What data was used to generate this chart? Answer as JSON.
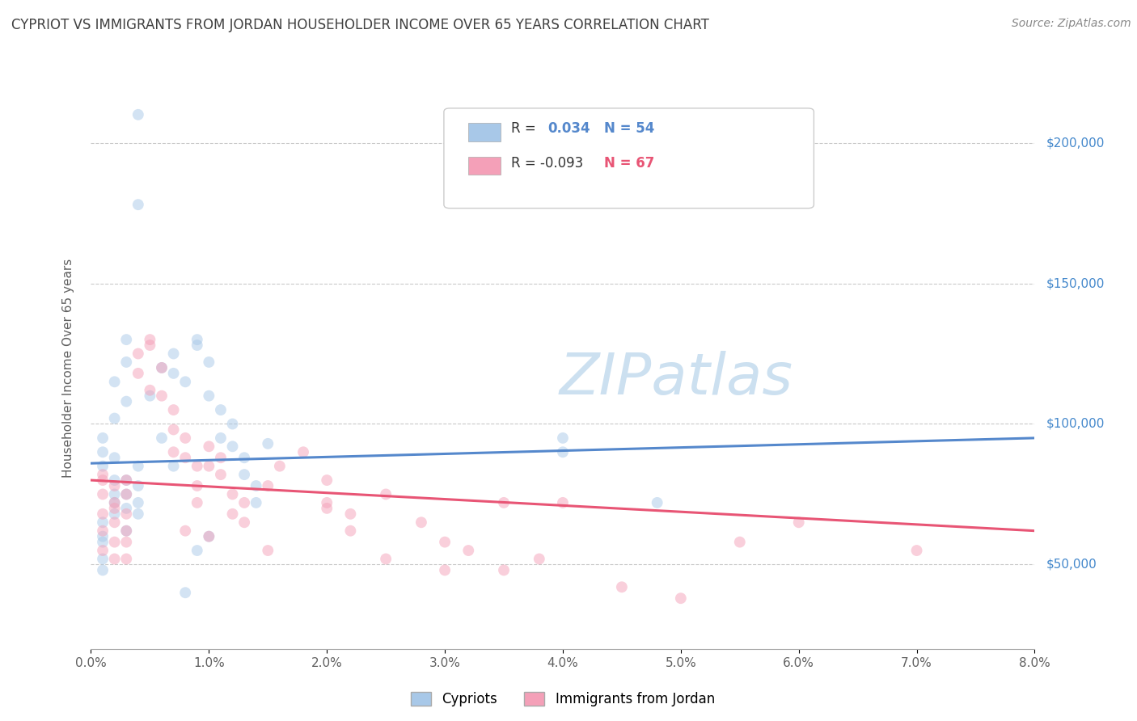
{
  "title": "CYPRIOT VS IMMIGRANTS FROM JORDAN HOUSEHOLDER INCOME OVER 65 YEARS CORRELATION CHART",
  "source": "Source: ZipAtlas.com",
  "ylabel": "Householder Income Over 65 years",
  "legend_blue_r": "R =",
  "legend_blue_r_val": "0.034",
  "legend_blue_n": "N = 54",
  "legend_pink_r": "R = -0.093",
  "legend_pink_n": "N = 67",
  "ytick_labels": [
    "$50,000",
    "$100,000",
    "$150,000",
    "$200,000"
  ],
  "ytick_values": [
    50000,
    100000,
    150000,
    200000
  ],
  "blue_color": "#a8c8e8",
  "pink_color": "#f4a0b8",
  "blue_line_color": "#5588cc",
  "pink_line_color": "#e85575",
  "blue_scatter": [
    [
      0.003,
      75000
    ],
    [
      0.003,
      62000
    ],
    [
      0.003,
      80000
    ],
    [
      0.003,
      70000
    ],
    [
      0.004,
      85000
    ],
    [
      0.004,
      78000
    ],
    [
      0.004,
      72000
    ],
    [
      0.004,
      68000
    ],
    [
      0.006,
      120000
    ],
    [
      0.007,
      125000
    ],
    [
      0.007,
      118000
    ],
    [
      0.008,
      115000
    ],
    [
      0.009,
      130000
    ],
    [
      0.009,
      128000
    ],
    [
      0.01,
      122000
    ],
    [
      0.01,
      110000
    ],
    [
      0.011,
      105000
    ],
    [
      0.011,
      95000
    ],
    [
      0.012,
      100000
    ],
    [
      0.012,
      92000
    ],
    [
      0.013,
      88000
    ],
    [
      0.013,
      82000
    ],
    [
      0.014,
      78000
    ],
    [
      0.014,
      72000
    ],
    [
      0.001,
      90000
    ],
    [
      0.001,
      85000
    ],
    [
      0.001,
      95000
    ],
    [
      0.002,
      88000
    ],
    [
      0.002,
      102000
    ],
    [
      0.002,
      115000
    ],
    [
      0.003,
      108000
    ],
    [
      0.003,
      122000
    ],
    [
      0.003,
      130000
    ],
    [
      0.004,
      178000
    ],
    [
      0.004,
      210000
    ],
    [
      0.005,
      110000
    ],
    [
      0.006,
      95000
    ],
    [
      0.007,
      85000
    ],
    [
      0.008,
      40000
    ],
    [
      0.009,
      55000
    ],
    [
      0.01,
      60000
    ],
    [
      0.015,
      93000
    ],
    [
      0.001,
      58000
    ],
    [
      0.001,
      52000
    ],
    [
      0.001,
      48000
    ],
    [
      0.001,
      65000
    ],
    [
      0.001,
      60000
    ],
    [
      0.002,
      72000
    ],
    [
      0.002,
      80000
    ],
    [
      0.002,
      75000
    ],
    [
      0.002,
      68000
    ],
    [
      0.04,
      95000
    ],
    [
      0.04,
      90000
    ],
    [
      0.048,
      72000
    ]
  ],
  "pink_scatter": [
    [
      0.001,
      75000
    ],
    [
      0.001,
      68000
    ],
    [
      0.001,
      62000
    ],
    [
      0.001,
      55000
    ],
    [
      0.002,
      72000
    ],
    [
      0.002,
      65000
    ],
    [
      0.002,
      58000
    ],
    [
      0.002,
      52000
    ],
    [
      0.003,
      80000
    ],
    [
      0.003,
      75000
    ],
    [
      0.003,
      68000
    ],
    [
      0.003,
      62000
    ],
    [
      0.004,
      125000
    ],
    [
      0.004,
      118000
    ],
    [
      0.005,
      112000
    ],
    [
      0.005,
      128000
    ],
    [
      0.006,
      120000
    ],
    [
      0.006,
      110000
    ],
    [
      0.007,
      105000
    ],
    [
      0.007,
      98000
    ],
    [
      0.007,
      90000
    ],
    [
      0.008,
      95000
    ],
    [
      0.008,
      88000
    ],
    [
      0.009,
      85000
    ],
    [
      0.009,
      78000
    ],
    [
      0.009,
      72000
    ],
    [
      0.01,
      92000
    ],
    [
      0.01,
      85000
    ],
    [
      0.011,
      88000
    ],
    [
      0.011,
      82000
    ],
    [
      0.012,
      75000
    ],
    [
      0.012,
      68000
    ],
    [
      0.013,
      72000
    ],
    [
      0.013,
      65000
    ],
    [
      0.015,
      78000
    ],
    [
      0.016,
      85000
    ],
    [
      0.018,
      90000
    ],
    [
      0.02,
      80000
    ],
    [
      0.02,
      72000
    ],
    [
      0.022,
      68000
    ],
    [
      0.022,
      62000
    ],
    [
      0.025,
      75000
    ],
    [
      0.028,
      65000
    ],
    [
      0.03,
      58000
    ],
    [
      0.032,
      55000
    ],
    [
      0.035,
      48000
    ],
    [
      0.038,
      52000
    ],
    [
      0.001,
      80000
    ],
    [
      0.001,
      82000
    ],
    [
      0.002,
      78000
    ],
    [
      0.002,
      70000
    ],
    [
      0.003,
      58000
    ],
    [
      0.003,
      52000
    ],
    [
      0.005,
      130000
    ],
    [
      0.008,
      62000
    ],
    [
      0.01,
      60000
    ],
    [
      0.015,
      55000
    ],
    [
      0.02,
      70000
    ],
    [
      0.025,
      52000
    ],
    [
      0.03,
      48000
    ],
    [
      0.035,
      72000
    ],
    [
      0.04,
      72000
    ],
    [
      0.045,
      42000
    ],
    [
      0.05,
      38000
    ],
    [
      0.055,
      58000
    ],
    [
      0.06,
      65000
    ],
    [
      0.07,
      55000
    ]
  ],
  "blue_line_x": [
    0.0,
    0.08
  ],
  "blue_line_y": [
    86000,
    95000
  ],
  "pink_line_x": [
    0.0,
    0.08
  ],
  "pink_line_y": [
    80000,
    62000
  ],
  "xlim": [
    0.0,
    0.08
  ],
  "ylim": [
    20000,
    220000
  ],
  "background_color": "#ffffff",
  "plot_bg_color": "#ffffff",
  "grid_color": "#bbbbbb",
  "title_color": "#404040",
  "source_color": "#888888",
  "axis_label_color": "#606060",
  "right_tick_color": "#4488cc",
  "scatter_size": 100,
  "scatter_alpha": 0.5,
  "line_width": 2.2,
  "watermark_text": "ZIPatlas",
  "watermark_color": "#cce0f0",
  "xtick_labels": [
    "0.0%",
    "1.0%",
    "2.0%",
    "3.0%",
    "4.0%",
    "5.0%",
    "6.0%",
    "7.0%",
    "8.0%"
  ],
  "xtick_vals": [
    0.0,
    0.01,
    0.02,
    0.03,
    0.04,
    0.05,
    0.06,
    0.07,
    0.08
  ],
  "bottom_legend_labels": [
    "Cypriots",
    "Immigrants from Jordan"
  ]
}
